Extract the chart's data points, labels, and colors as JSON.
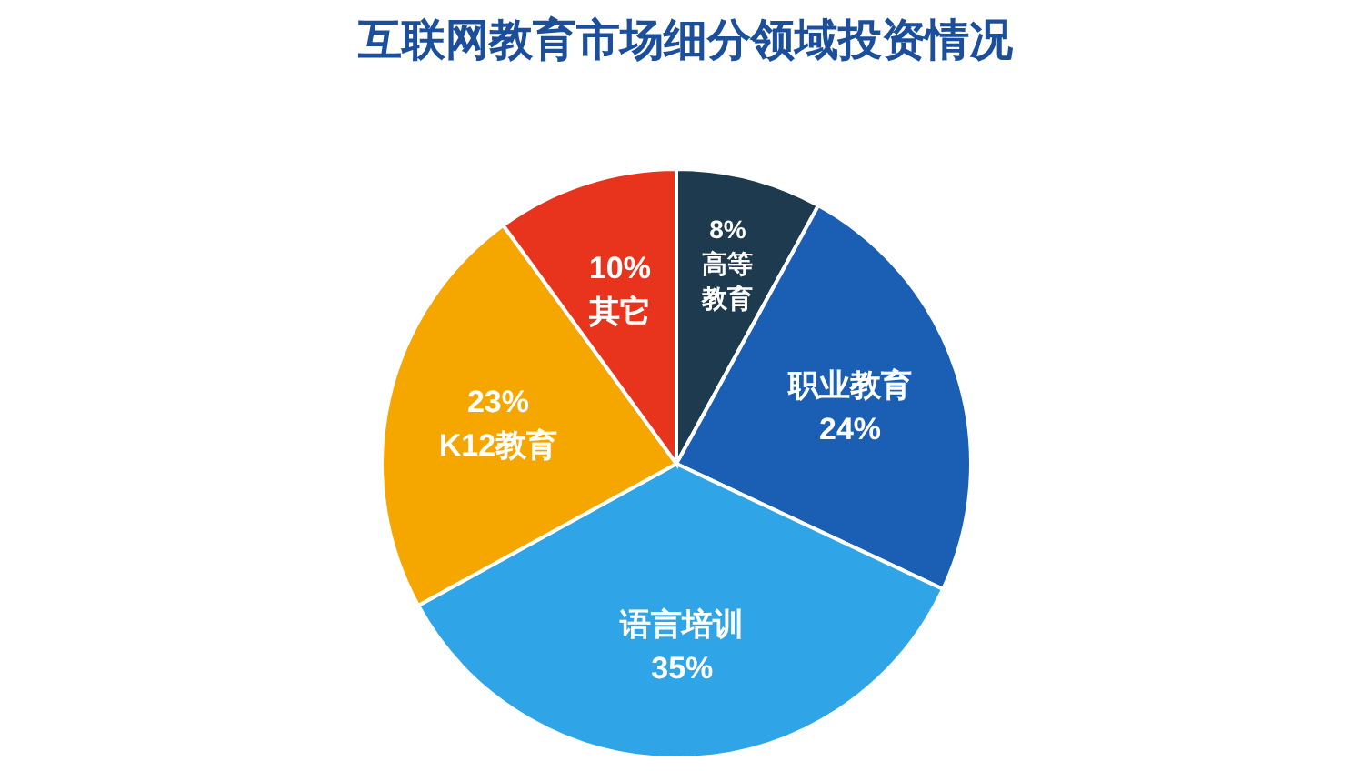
{
  "chart_data": {
    "type": "pie",
    "title": "互联网教育市场细分领域投资情况",
    "categories": [
      "高等教育",
      "职业教育",
      "语言培训",
      "K12教育",
      "其它"
    ],
    "values": [
      8,
      24,
      35,
      23,
      10
    ],
    "colors": [
      "#1e3a4f",
      "#1b5fb5",
      "#2fa4e7",
      "#f5a700",
      "#e8341c"
    ],
    "value_labels": [
      "8%",
      "24%",
      "35%",
      "23%",
      "10%"
    ]
  }
}
